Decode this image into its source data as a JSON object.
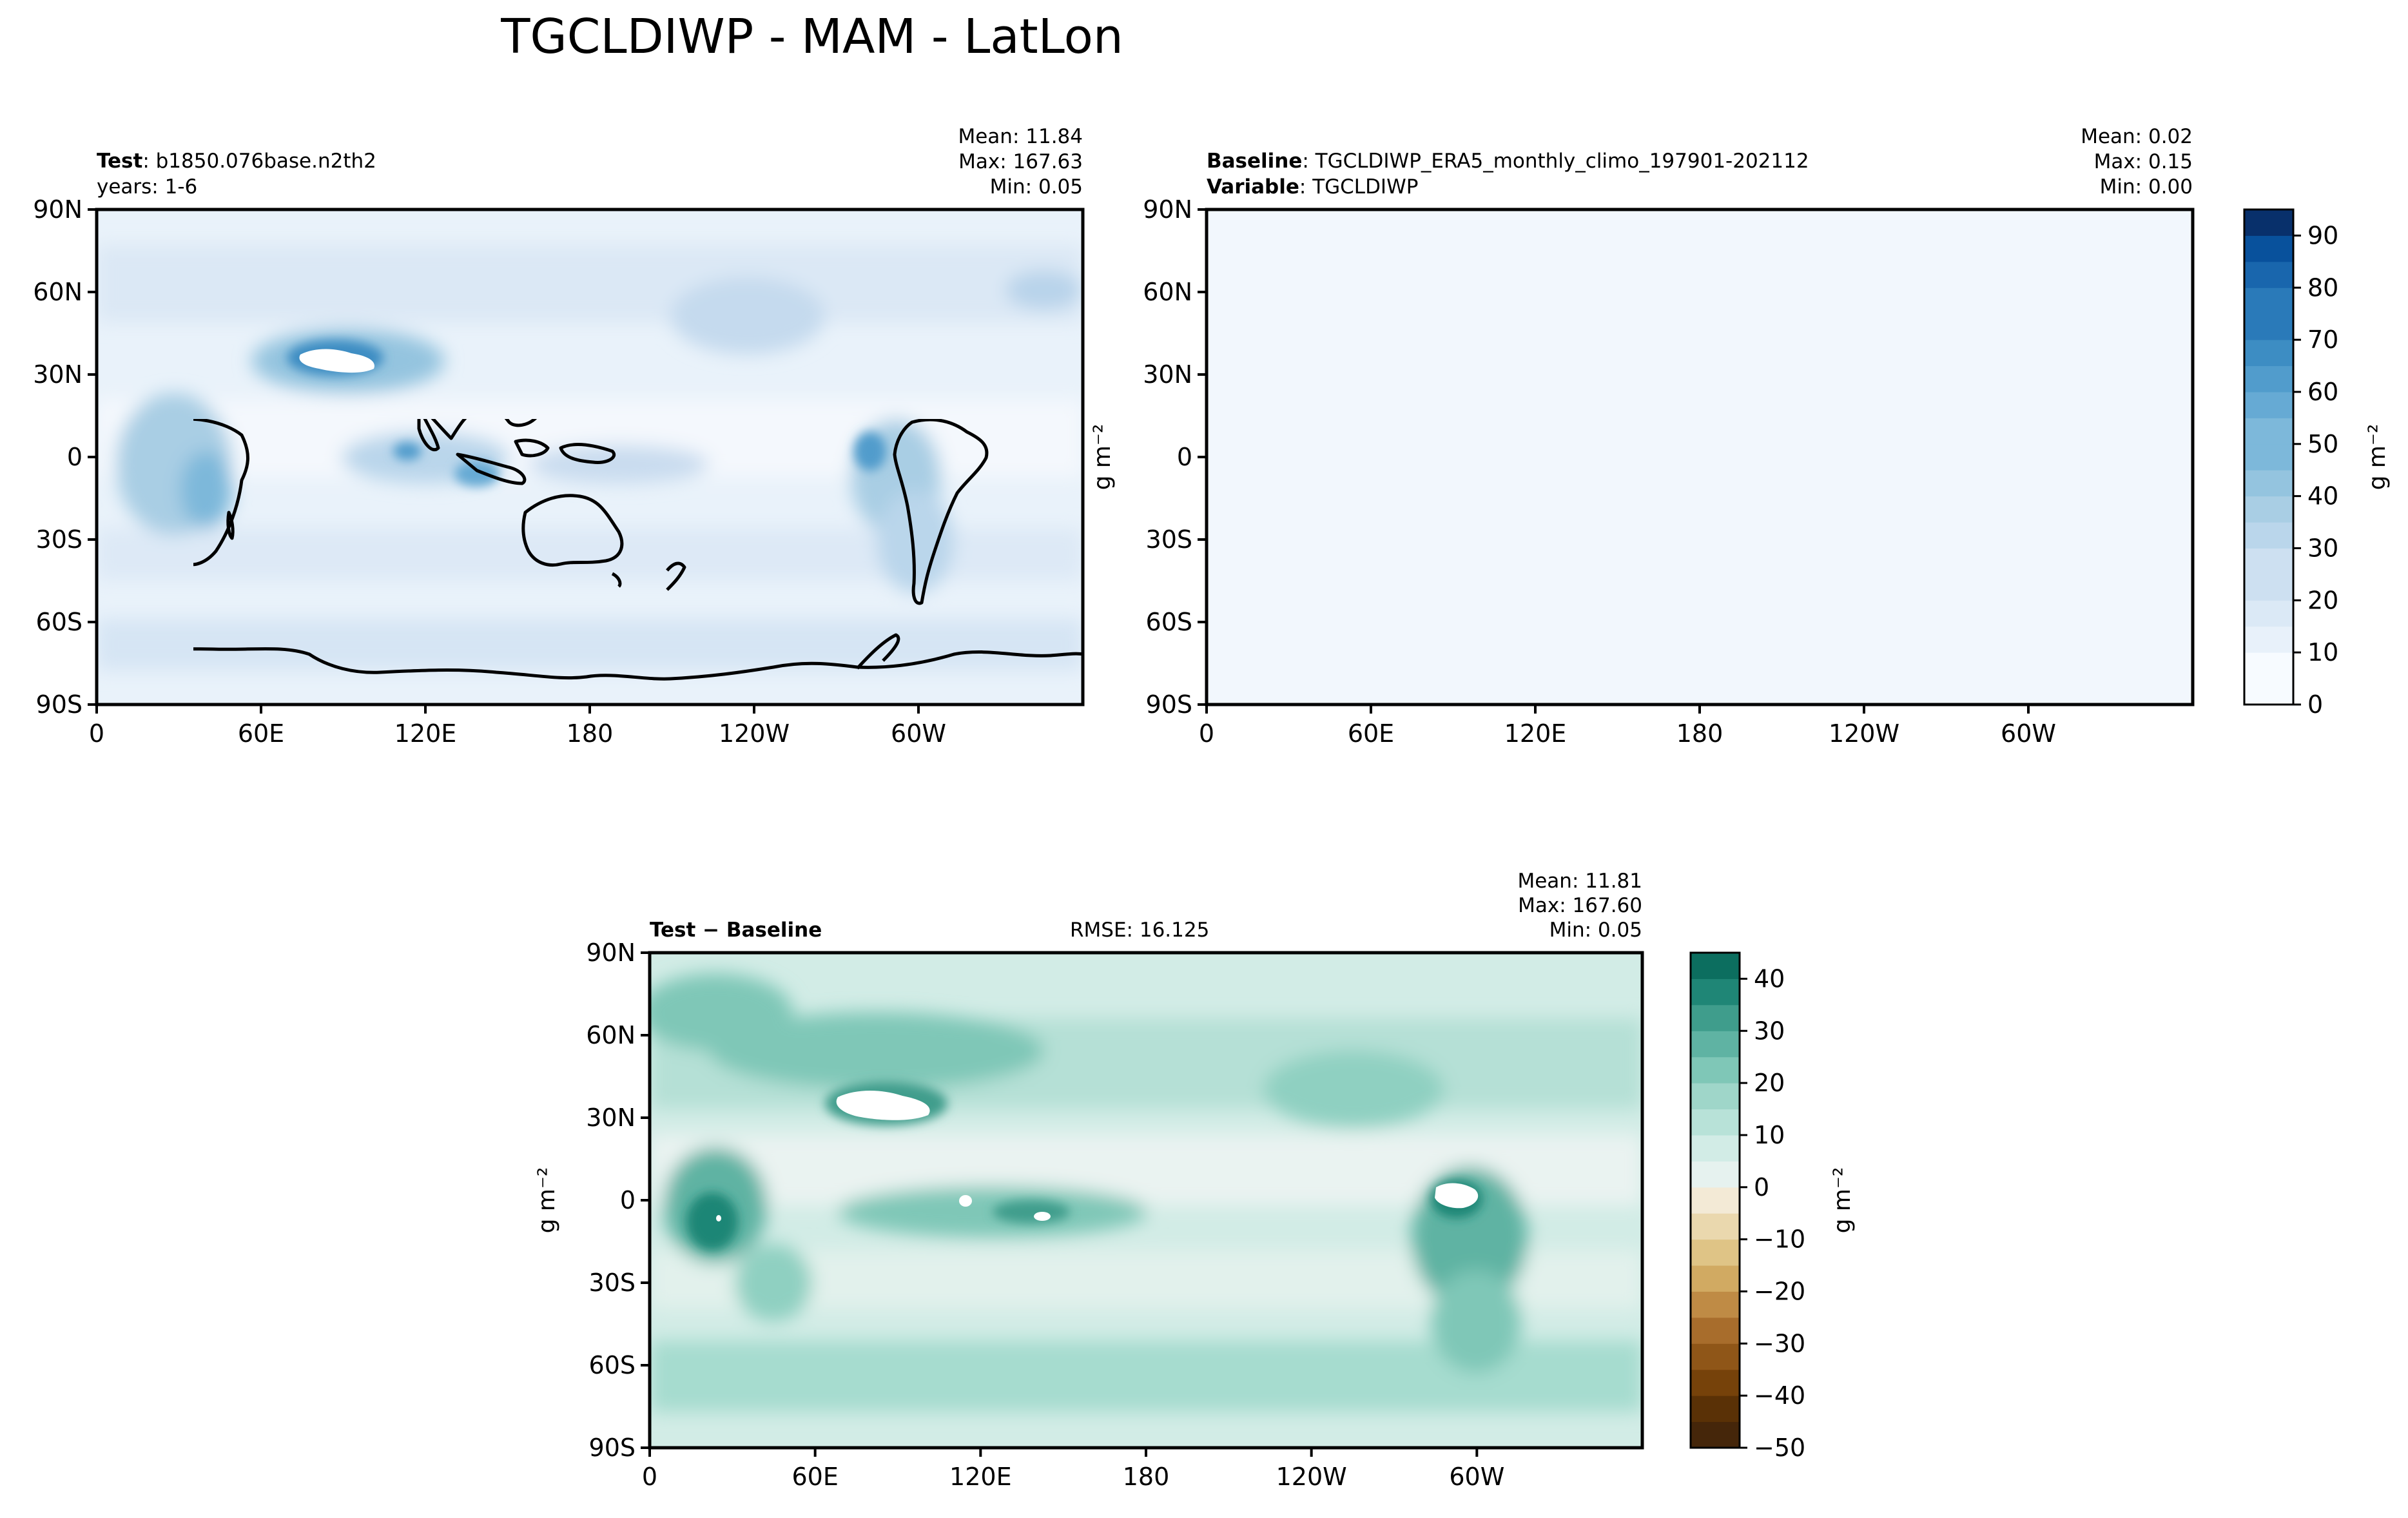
{
  "figure": {
    "title": "TGCLDIWP - MAM - LatLon"
  },
  "colors": {
    "frame": "#000000",
    "coast": "#000000",
    "ocean_low": "#f4f8fd",
    "blues": [
      "#f7fbff",
      "#e8f1fa",
      "#dbe9f6",
      "#cde0f1",
      "#bad6eb",
      "#a9cee4",
      "#94c4df",
      "#7db8da",
      "#66aad4",
      "#519ccc",
      "#3d8dc3",
      "#2a7ab9",
      "#1966ad",
      "#08519c",
      "#08306b"
    ],
    "teal_pos": [
      "#e6f2ef",
      "#d2ece6",
      "#b8e2d8",
      "#9fd6c9",
      "#7fc7b7",
      "#5fb3a3",
      "#3f9d8c",
      "#1f8676",
      "#0c6e5f",
      "#004c3f"
    ],
    "brown_neg": [
      "#f3ead6",
      "#ead8ae",
      "#dfc486",
      "#d1aa62",
      "#bf8b45",
      "#a86d2c",
      "#8f5618",
      "#76420a",
      "#5a3106",
      "#45260a"
    ]
  },
  "panels": [
    {
      "id": "test",
      "label_bold": "Test",
      "label_rest": ": b1850.076base.n2th2",
      "label_line2": "years: 1-6",
      "stats": {
        "mean": "Mean: 11.84",
        "max": "Max: 167.63",
        "min": "Min:  0.05"
      },
      "ylabel": ""
    },
    {
      "id": "baseline",
      "label_bold": "Baseline",
      "label_rest": ": TGCLDIWP_ERA5_monthly_climo_197901-202112",
      "label_bold2": "Variable",
      "label_rest2": ": TGCLDIWP",
      "stats": {
        "mean": "Mean:  0.02",
        "max": "Max:  0.15",
        "min": "Min:  0.00"
      },
      "ylabel": "g m⁻²"
    },
    {
      "id": "diff",
      "label_bold": "Test − Baseline",
      "rmse": "RMSE: 16.125",
      "stats": {
        "mean": "Mean: 11.81",
        "max": "Max: 167.60",
        "min": "Min:  0.05"
      },
      "ylabel": "g m⁻²"
    }
  ],
  "axes": {
    "lat_ticks": [
      "90N",
      "60N",
      "30N",
      "0",
      "30S",
      "60S",
      "90S"
    ],
    "lon_ticks": [
      "0",
      "60E",
      "120E",
      "180",
      "120W",
      "60W"
    ]
  },
  "colorbars": [
    {
      "id": "cb-top",
      "ticks": [
        "0",
        "10",
        "20",
        "30",
        "40",
        "50",
        "60",
        "70",
        "80",
        "90"
      ],
      "label": "g m⁻²"
    },
    {
      "id": "cb-diff",
      "ticks": [
        "−50",
        "−40",
        "−30",
        "−20",
        "−10",
        "0",
        "10",
        "20",
        "30",
        "40"
      ],
      "label": "g m⁻²"
    }
  ],
  "chart_data": [
    {
      "type": "heatmap",
      "title": "Test: b1850.076base.n2th2",
      "x": [
        "0",
        "60E",
        "120E",
        "180",
        "120W",
        "60W"
      ],
      "y": [
        "90N",
        "60N",
        "30N",
        "0",
        "30S",
        "60S",
        "90S"
      ],
      "xlim": [
        0,
        360
      ],
      "ylim": [
        -90,
        90
      ],
      "colorbar": {
        "range": [
          0,
          95
        ],
        "ticks": [
          0,
          10,
          20,
          30,
          40,
          50,
          60,
          70,
          80,
          90
        ],
        "label": "g m⁻²"
      },
      "stats": {
        "mean": 11.84,
        "max": 167.63,
        "min": 0.05
      }
    },
    {
      "type": "heatmap",
      "title": "Baseline: TGCLDIWP_ERA5_monthly_climo_197901-202112",
      "x": [
        "0",
        "60E",
        "120E",
        "180",
        "120W",
        "60W"
      ],
      "y": [
        "90N",
        "60N",
        "30N",
        "0",
        "30S",
        "60S",
        "90S"
      ],
      "xlim": [
        0,
        360
      ],
      "ylim": [
        -90,
        90
      ],
      "colorbar": {
        "range": [
          0,
          95
        ],
        "ticks": [
          0,
          10,
          20,
          30,
          40,
          50,
          60,
          70,
          80,
          90
        ],
        "label": "g m⁻²"
      },
      "stats": {
        "mean": 0.02,
        "max": 0.15,
        "min": 0.0
      }
    },
    {
      "type": "heatmap",
      "title": "Test − Baseline",
      "x": [
        "0",
        "60E",
        "120E",
        "180",
        "120W",
        "60W"
      ],
      "y": [
        "90N",
        "60N",
        "30N",
        "0",
        "30S",
        "60S",
        "90S"
      ],
      "xlim": [
        0,
        360
      ],
      "ylim": [
        -90,
        90
      ],
      "colorbar": {
        "range": [
          -50,
          45
        ],
        "ticks": [
          -50,
          -40,
          -30,
          -20,
          -10,
          0,
          10,
          20,
          30,
          40
        ],
        "label": "g m⁻²"
      },
      "rmse": 16.125,
      "stats": {
        "mean": 11.81,
        "max": 167.6,
        "min": 0.05
      }
    }
  ]
}
